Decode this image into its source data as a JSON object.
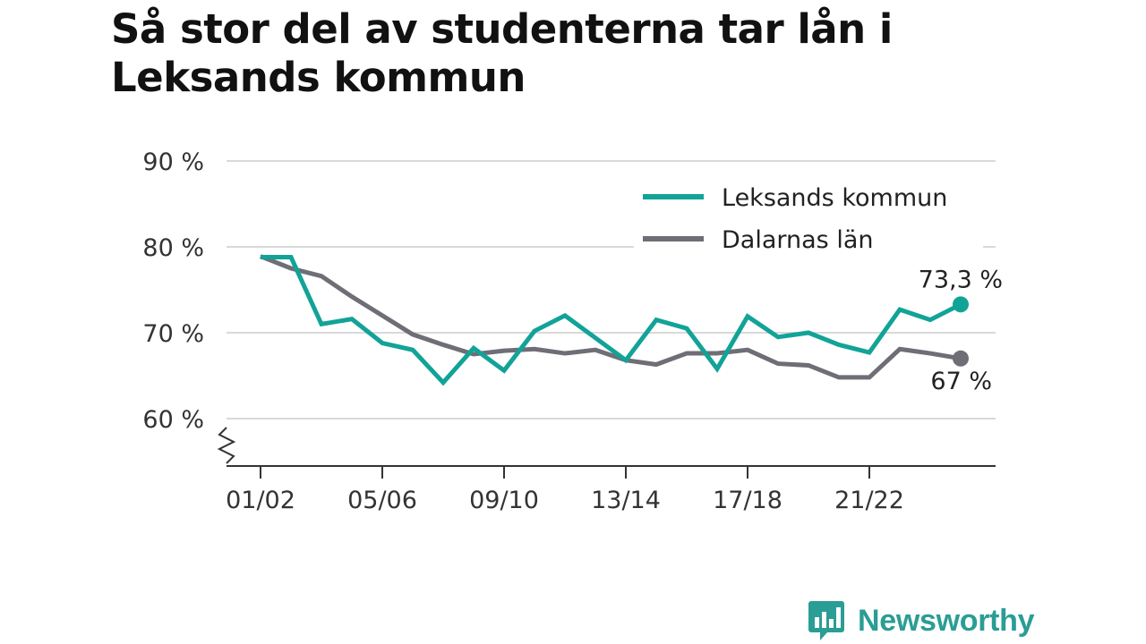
{
  "chart_data": {
    "type": "line",
    "title": "Så stor del av studenterna tar lån i Leksands kommun",
    "xlabel": "",
    "ylabel": "",
    "ylim": [
      55,
      90
    ],
    "yticks": [
      {
        "value": 60,
        "label": "60 %"
      },
      {
        "value": 70,
        "label": "70 %"
      },
      {
        "value": 80,
        "label": "80 %"
      },
      {
        "value": 90,
        "label": "90 %"
      }
    ],
    "x": [
      "01/02",
      "02/03",
      "03/04",
      "04/05",
      "05/06",
      "06/07",
      "07/08",
      "08/09",
      "09/10",
      "10/11",
      "11/12",
      "12/13",
      "13/14",
      "14/15",
      "15/16",
      "16/17",
      "17/18",
      "18/19",
      "19/20",
      "20/21",
      "21/22",
      "22/23",
      "23/24",
      "24/25"
    ],
    "xtick_labels": [
      "01/02",
      "05/06",
      "09/10",
      "13/14",
      "17/18",
      "21/22"
    ],
    "series": [
      {
        "name": "Leksands kommun",
        "color": "#12a398",
        "values": [
          78.8,
          78.8,
          71.0,
          71.6,
          68.8,
          68.0,
          64.2,
          68.2,
          65.6,
          70.2,
          72.0,
          69.4,
          66.8,
          71.5,
          70.5,
          65.8,
          71.9,
          69.5,
          70.0,
          68.6,
          67.7,
          72.7,
          71.5,
          73.3
        ],
        "end_label": "73,3 %"
      },
      {
        "name": "Dalarnas län",
        "color": "#6f6e76",
        "values": [
          78.9,
          77.5,
          76.6,
          74.2,
          72.0,
          69.8,
          68.6,
          67.5,
          67.9,
          68.1,
          67.6,
          68.0,
          66.8,
          66.3,
          67.6,
          67.6,
          68.0,
          66.4,
          66.2,
          64.8,
          64.8,
          68.1,
          67.6,
          67.0
        ],
        "end_label": "67 %"
      }
    ],
    "legend_position": "top-right",
    "grid": true,
    "axis_break": true
  },
  "brand": {
    "name": "Newsworthy",
    "color": "#2a9d94",
    "icon": "newsworthy-logo-icon"
  }
}
